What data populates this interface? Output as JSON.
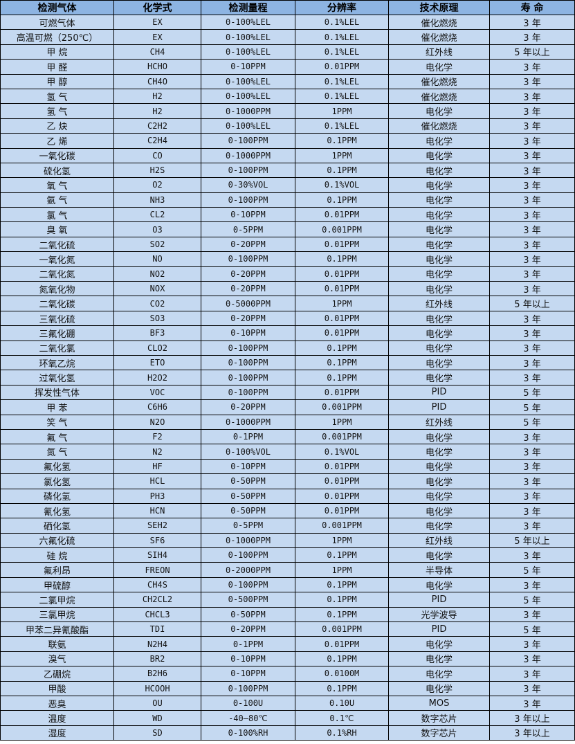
{
  "table": {
    "headers": [
      "检测气体",
      "化学式",
      "检测量程",
      "分辨率",
      "技术原理",
      "寿 命"
    ],
    "rows": [
      [
        "可燃气体",
        "EX",
        "0-100%LEL",
        "0.1%LEL",
        "催化燃烧",
        "3 年"
      ],
      [
        "高温可燃（250℃）",
        "EX",
        "0-100%LEL",
        "0.1%LEL",
        "催化燃烧",
        "3 年"
      ],
      [
        "甲 烷",
        "CH4",
        "0-100%LEL",
        "0.1%LEL",
        "红外线",
        "5 年以上"
      ],
      [
        "甲 醛",
        "HCHO",
        "0-10PPM",
        "0.01PPM",
        "电化学",
        "3 年"
      ],
      [
        "甲 醇",
        "CH4O",
        "0-100%LEL",
        "0.1%LEL",
        "催化燃烧",
        "3 年"
      ],
      [
        "氢 气",
        "H2",
        "0-100%LEL",
        "0.1%LEL",
        "催化燃烧",
        "3 年"
      ],
      [
        "氢 气",
        "H2",
        "0-1000PPM",
        "1PPM",
        "电化学",
        "3 年"
      ],
      [
        "乙 炔",
        "C2H2",
        "0-100%LEL",
        "0.1%LEL",
        "催化燃烧",
        "3 年"
      ],
      [
        "乙 烯",
        "C2H4",
        "0-100PPM",
        "0.1PPM",
        "电化学",
        "3 年"
      ],
      [
        "一氧化碳",
        "CO",
        "0-1000PPM",
        "1PPM",
        "电化学",
        "3 年"
      ],
      [
        "硫化氢",
        "H2S",
        "0-100PPM",
        "0.1PPM",
        "电化学",
        "3 年"
      ],
      [
        "氧 气",
        "O2",
        "0-30%VOL",
        "0.1%VOL",
        "电化学",
        "3 年"
      ],
      [
        "氨 气",
        "NH3",
        "0-100PPM",
        "0.1PPM",
        "电化学",
        "3 年"
      ],
      [
        "氯 气",
        "CL2",
        "0-10PPM",
        "0.01PPM",
        "电化学",
        "3 年"
      ],
      [
        "臭 氧",
        "O3",
        "0-5PPM",
        "0.001PPM",
        "电化学",
        "3 年"
      ],
      [
        "二氧化硫",
        "SO2",
        "0-20PPM",
        "0.01PPM",
        "电化学",
        "3 年"
      ],
      [
        "一氧化氮",
        "NO",
        "0-100PPM",
        "0.1PPM",
        "电化学",
        "3 年"
      ],
      [
        "二氧化氮",
        "NO2",
        "0-20PPM",
        "0.01PPM",
        "电化学",
        "3 年"
      ],
      [
        "氮氧化物",
        "NOX",
        "0-20PPM",
        "0.01PPM",
        "电化学",
        "3 年"
      ],
      [
        "二氧化碳",
        "CO2",
        "0-5000PPM",
        "1PPM",
        "红外线",
        "5 年以上"
      ],
      [
        "三氧化硫",
        "SO3",
        "0-20PPM",
        "0.01PPM",
        "电化学",
        "3 年"
      ],
      [
        "三氟化硼",
        "BF3",
        "0-10PPM",
        "0.01PPM",
        "电化学",
        "3 年"
      ],
      [
        "二氧化氯",
        "CLO2",
        "0-100PPM",
        "0.1PPM",
        "电化学",
        "3 年"
      ],
      [
        "环氧乙烷",
        "ETO",
        "0-100PPM",
        "0.1PPM",
        "电化学",
        "3 年"
      ],
      [
        "过氧化氢",
        "H2O2",
        "0-100PPM",
        "0.1PPM",
        "电化学",
        "3 年"
      ],
      [
        "挥发性气体",
        "VOC",
        "0-100PPM",
        "0.01PPM",
        "PID",
        "5 年"
      ],
      [
        "甲 苯",
        "C6H6",
        "0-20PPM",
        "0.001PPM",
        "PID",
        "5 年"
      ],
      [
        "笑 气",
        "N2O",
        "0-1000PPM",
        "1PPM",
        "红外线",
        "5 年"
      ],
      [
        "氟 气",
        "F2",
        "0-1PPM",
        "0.001PPM",
        "电化学",
        "3 年"
      ],
      [
        "氮 气",
        "N2",
        "0-100%VOL",
        "0.1%VOL",
        "电化学",
        "3 年"
      ],
      [
        "氟化氢",
        "HF",
        "0-10PPM",
        "0.01PPM",
        "电化学",
        "3 年"
      ],
      [
        "氯化氢",
        "HCL",
        "0-50PPM",
        "0.01PPM",
        "电化学",
        "3 年"
      ],
      [
        "磷化氢",
        "PH3",
        "0-50PPM",
        "0.01PPM",
        "电化学",
        "3 年"
      ],
      [
        "氰化氢",
        "HCN",
        "0-50PPM",
        "0.01PPM",
        "电化学",
        "3 年"
      ],
      [
        "硒化氢",
        "SEH2",
        "0-5PPM",
        "0.001PPM",
        "电化学",
        "3 年"
      ],
      [
        "六氟化硫",
        "SF6",
        "0-1000PPM",
        "1PPM",
        "红外线",
        "5 年以上"
      ],
      [
        "硅 烷",
        "SIH4",
        "0-100PPM",
        "0.1PPM",
        "电化学",
        "3 年"
      ],
      [
        "氟利昂",
        "FREON",
        "0-2000PPM",
        "1PPM",
        "半导体",
        "5 年"
      ],
      [
        "甲硫醇",
        "CH4S",
        "0-100PPM",
        "0.1PPM",
        "电化学",
        "3 年"
      ],
      [
        "二氯甲烷",
        "CH2CL2",
        "0-500PPM",
        "0.1PPM",
        "PID",
        "5 年"
      ],
      [
        "三氯甲烷",
        "CHCL3",
        "0-50PPM",
        "0.1PPM",
        "光学波导",
        "3 年"
      ],
      [
        "甲苯二异氰酸酯",
        "TDI",
        "0-20PPM",
        "0.001PPM",
        "PID",
        "5 年"
      ],
      [
        "联氨",
        "N2H4",
        "0-1PPM",
        "0.01PPM",
        "电化学",
        "3 年"
      ],
      [
        "溴气",
        "BR2",
        "0-10PPM",
        "0.1PPM",
        "电化学",
        "3 年"
      ],
      [
        "乙硼烷",
        "B2H6",
        "0-10PPM",
        "0.0100M",
        "电化学",
        "3 年"
      ],
      [
        "甲酸",
        "HCOOH",
        "0-100PPM",
        "0.1PPM",
        "电化学",
        "3 年"
      ],
      [
        "恶臭",
        "OU",
        "0-100U",
        "0.10U",
        "MOS",
        "3 年"
      ],
      [
        "温度",
        "WD",
        "-40—80℃",
        "0.1℃",
        "数字芯片",
        "3 年以上"
      ],
      [
        "湿度",
        "SD",
        "0-100%RH",
        "0.1%RH",
        "数字芯片",
        "3 年以上"
      ]
    ]
  },
  "colors": {
    "header_bg": "#8db4e2",
    "row_bg": "#c5d9f1",
    "border": "#000000"
  }
}
